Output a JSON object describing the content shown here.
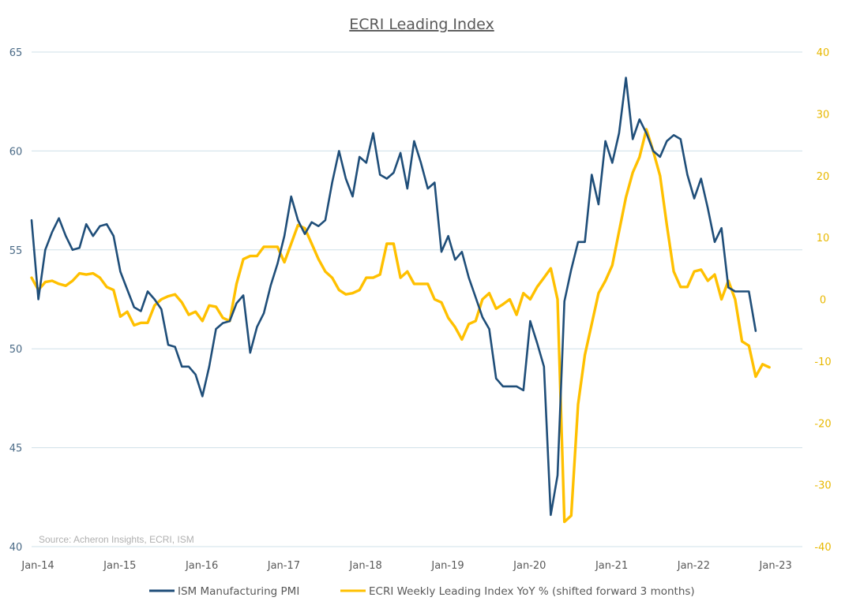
{
  "chart_data": {
    "type": "line",
    "title": "ECRI Leading Index",
    "source": "Source: Acheron Insights, ECRI, ISM",
    "x_tick_labels": [
      "Jan-14",
      "Jan-15",
      "Jan-16",
      "Jan-17",
      "Jan-18",
      "Jan-19",
      "Jan-20",
      "Jan-21",
      "Jan-22",
      "Jan-23"
    ],
    "x_range": [
      "2014-01",
      "2023-06"
    ],
    "y_left": {
      "range": [
        40,
        65
      ],
      "ticks": [
        "40",
        "45",
        "50",
        "55",
        "60",
        "65"
      ]
    },
    "y_right": {
      "range": [
        -40,
        40
      ],
      "ticks": [
        "-40",
        "-30",
        "-20",
        "-10",
        "0",
        "10",
        "20",
        "30",
        "40"
      ]
    },
    "grid": "horizontal",
    "legend_placement": "bottom",
    "colors": {
      "pmi": "#1f4e79",
      "ecri": "#ffc000"
    },
    "series": [
      {
        "name": "ISM Manufacturing PMI",
        "axis": "left",
        "start": "2014-01",
        "values": [
          56.5,
          52.5,
          55.0,
          55.9,
          56.6,
          55.7,
          55.0,
          55.1,
          56.3,
          55.7,
          56.2,
          56.3,
          55.7,
          53.9,
          53.0,
          52.1,
          51.9,
          52.9,
          52.5,
          52.0,
          50.2,
          50.1,
          49.1,
          49.1,
          48.7,
          47.6,
          49.1,
          51.0,
          51.3,
          51.4,
          52.3,
          52.7,
          49.8,
          51.1,
          51.8,
          53.2,
          54.3,
          55.7,
          57.7,
          56.5,
          55.8,
          56.4,
          56.2,
          56.5,
          58.4,
          60.0,
          58.6,
          57.7,
          59.7,
          59.4,
          60.9,
          58.8,
          58.6,
          58.9,
          59.9,
          58.1,
          60.5,
          59.4,
          58.1,
          58.4,
          54.9,
          55.7,
          54.5,
          54.9,
          53.6,
          52.6,
          51.6,
          51.0,
          48.5,
          48.1,
          48.1,
          48.1,
          47.9,
          51.4,
          50.3,
          49.1,
          41.6,
          43.6,
          52.4,
          54.0,
          55.4,
          55.4,
          58.8,
          57.3,
          60.5,
          59.4,
          60.9,
          63.7,
          60.6,
          61.6,
          60.9,
          60.0,
          59.7,
          60.5,
          60.8,
          60.6,
          58.8,
          57.6,
          58.6,
          57.1,
          55.4,
          56.1,
          53.1,
          52.9,
          52.9,
          52.9,
          50.9
        ]
      },
      {
        "name": "ECRI Weekly Leading Index YoY % (shifted forward 3 months)",
        "axis": "right",
        "start": "2014-01",
        "values": [
          3.5,
          1.5,
          2.8,
          3.0,
          2.5,
          2.2,
          3.0,
          4.2,
          4.0,
          4.2,
          3.5,
          2.0,
          1.5,
          -2.8,
          -2.0,
          -4.2,
          -3.8,
          -3.8,
          -1.0,
          0.0,
          0.5,
          0.8,
          -0.5,
          -2.5,
          -2.0,
          -3.5,
          -1.0,
          -1.2,
          -3.0,
          -3.5,
          2.5,
          6.5,
          7.0,
          7.0,
          8.5,
          8.5,
          8.5,
          6.0,
          9.0,
          12.0,
          11.5,
          9.0,
          6.5,
          4.5,
          3.5,
          1.5,
          0.8,
          1.0,
          1.5,
          3.5,
          3.5,
          4.0,
          9.0,
          9.0,
          3.5,
          4.5,
          2.5,
          2.5,
          2.5,
          0.0,
          -0.5,
          -3.0,
          -4.5,
          -6.5,
          -4.0,
          -3.5,
          0.0,
          1.0,
          -1.5,
          -0.8,
          0.0,
          -2.5,
          1.0,
          0.0,
          2.0,
          3.5,
          5.0,
          0.0,
          -36.0,
          -35.0,
          -17.0,
          -9.0,
          -4.0,
          1.0,
          3.0,
          5.5,
          11.0,
          16.5,
          20.5,
          23.0,
          27.5,
          24.0,
          20.0,
          12.0,
          4.5,
          2.0,
          2.0,
          4.5,
          4.8,
          3.0,
          4.0,
          0.0,
          3.0,
          0.0,
          -6.8,
          -7.5,
          -12.5,
          -10.5,
          -11.0
        ]
      }
    ]
  }
}
